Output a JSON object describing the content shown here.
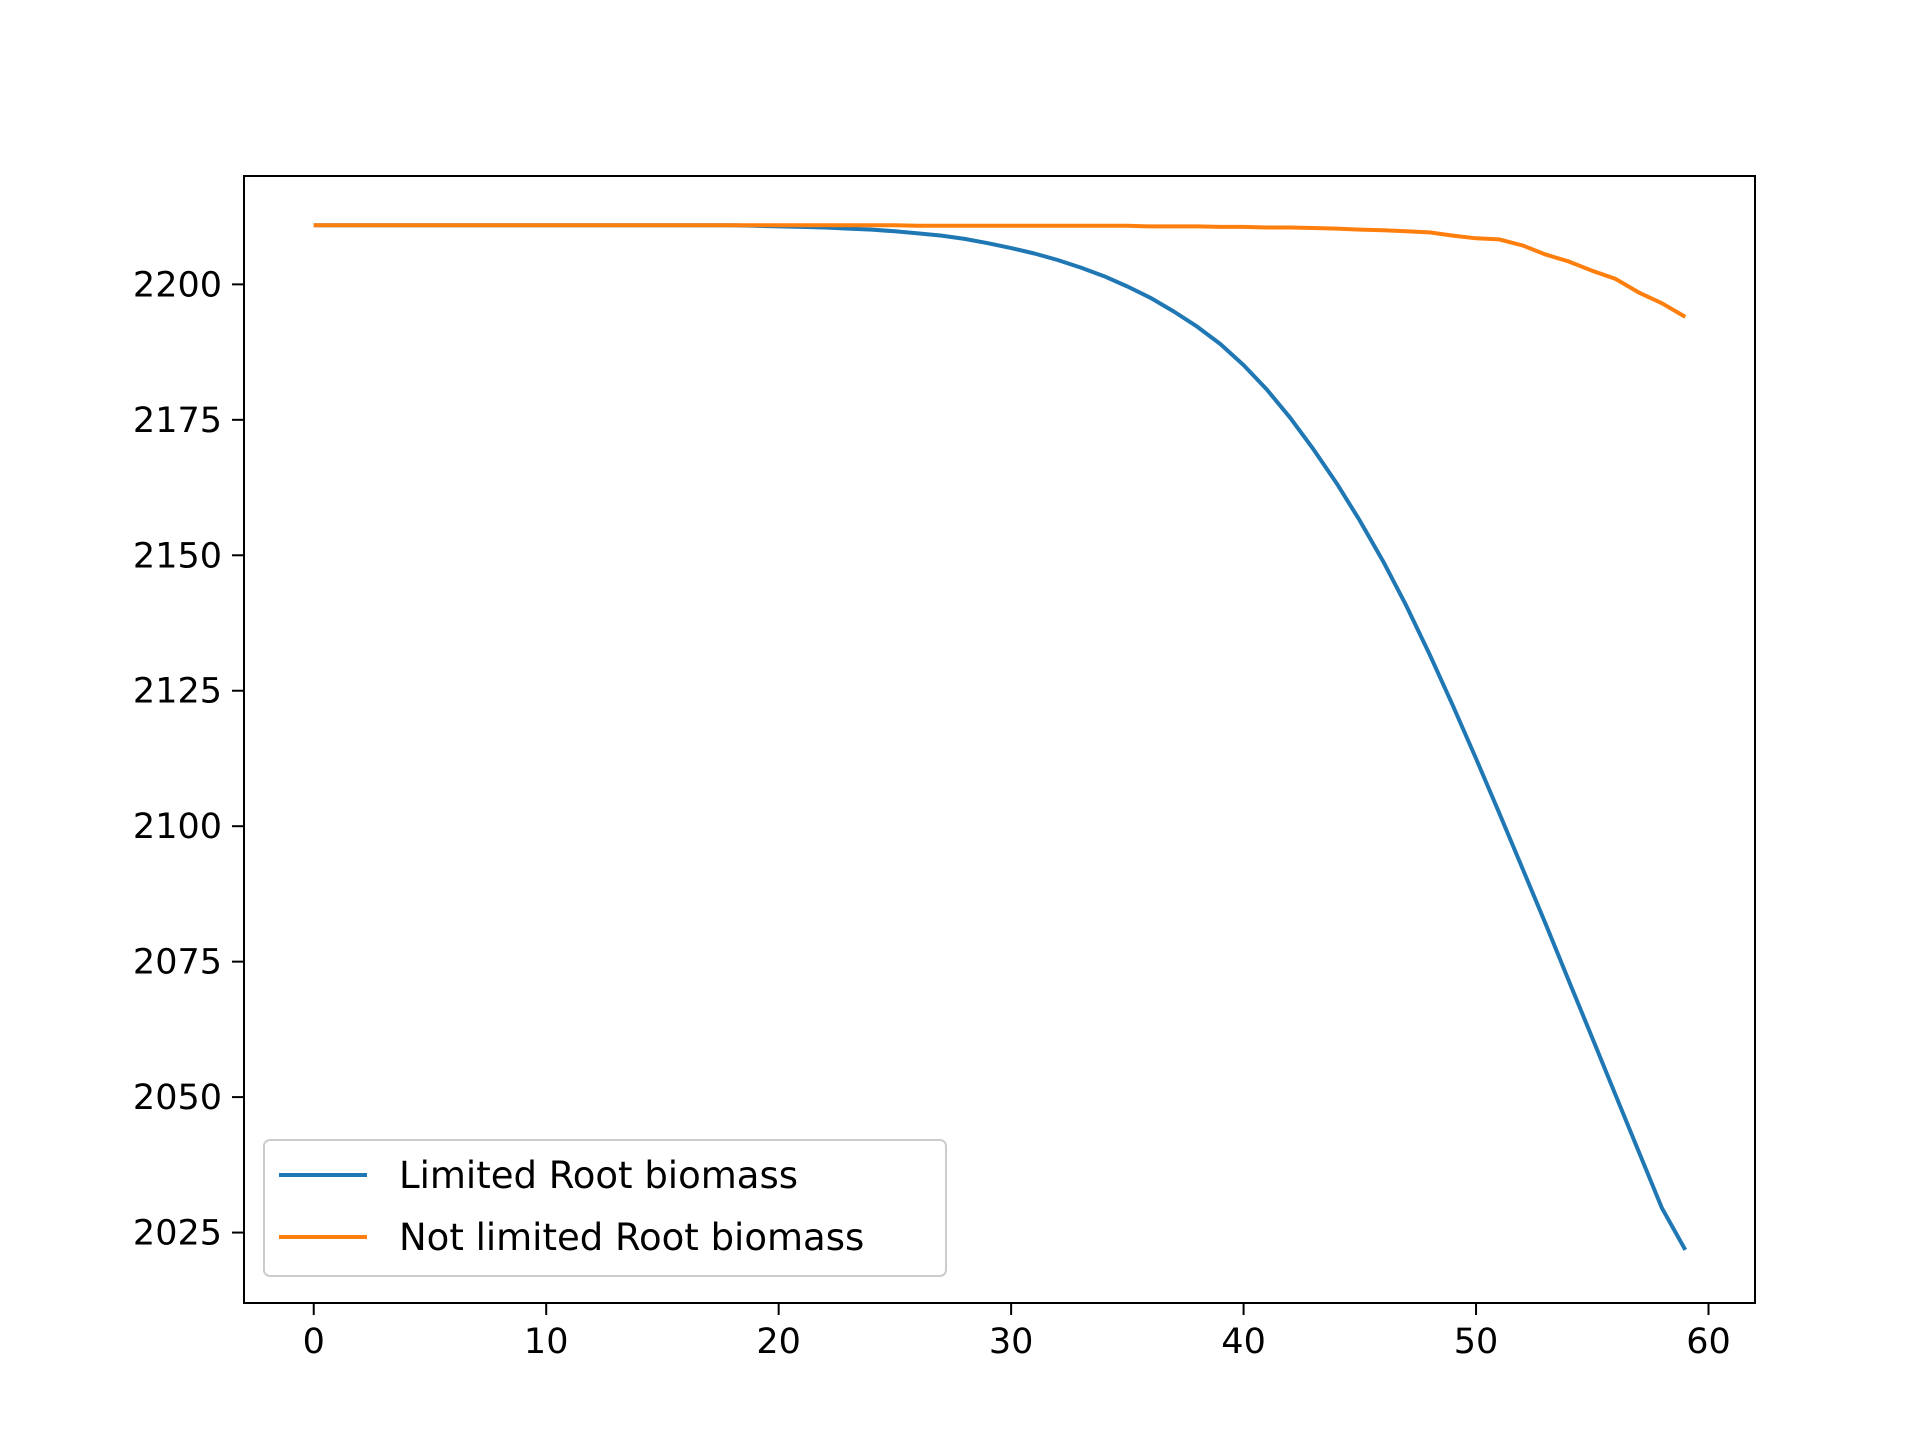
{
  "chart_data": {
    "type": "line",
    "title": "",
    "xlabel": "",
    "ylabel": "",
    "xlim": [
      -3,
      62
    ],
    "ylim": [
      2012,
      2220
    ],
    "xticks": [
      0,
      10,
      20,
      30,
      40,
      50,
      60
    ],
    "yticks": [
      2025,
      2050,
      2075,
      2100,
      2125,
      2150,
      2175,
      2200
    ],
    "legend_position": "lower-left",
    "series": [
      {
        "name": "Limited Root biomass",
        "color": "#1f77b4",
        "x": [
          0,
          1,
          2,
          3,
          4,
          5,
          6,
          7,
          8,
          9,
          10,
          11,
          12,
          13,
          14,
          15,
          16,
          17,
          18,
          19,
          20,
          21,
          22,
          23,
          24,
          25,
          26,
          27,
          28,
          29,
          30,
          31,
          32,
          33,
          34,
          35,
          36,
          37,
          38,
          39,
          40,
          41,
          42,
          43,
          44,
          45,
          46,
          47,
          48,
          49,
          50,
          51,
          52,
          53,
          54,
          55,
          56,
          57,
          58,
          59
        ],
        "values": [
          2210.9,
          2210.9,
          2210.9,
          2210.9,
          2210.9,
          2210.9,
          2210.9,
          2210.9,
          2210.9,
          2210.9,
          2210.9,
          2210.9,
          2210.9,
          2210.9,
          2210.9,
          2210.9,
          2210.9,
          2210.9,
          2210.9,
          2210.8,
          2210.7,
          2210.6,
          2210.5,
          2210.3,
          2210.1,
          2209.8,
          2209.4,
          2209.0,
          2208.4,
          2207.6,
          2206.7,
          2205.7,
          2204.5,
          2203.1,
          2201.5,
          2199.6,
          2197.5,
          2195.0,
          2192.2,
          2189.0,
          2185.1,
          2180.6,
          2175.4,
          2169.6,
          2163.3,
          2156.4,
          2148.9,
          2140.7,
          2131.7,
          2122.3,
          2112.5,
          2102.4,
          2092.2,
          2081.9,
          2071.4,
          2060.9,
          2050.4,
          2039.9,
          2029.5,
          2021.8
        ]
      },
      {
        "name": "Not limited Root biomass",
        "color": "#ff7f0e",
        "x": [
          0,
          1,
          2,
          3,
          4,
          5,
          6,
          7,
          8,
          9,
          10,
          11,
          12,
          13,
          14,
          15,
          16,
          17,
          18,
          19,
          20,
          21,
          22,
          23,
          24,
          25,
          26,
          27,
          28,
          29,
          30,
          31,
          32,
          33,
          34,
          35,
          36,
          37,
          38,
          39,
          40,
          41,
          42,
          43,
          44,
          45,
          46,
          47,
          48,
          49,
          50,
          51,
          52,
          53,
          54,
          55,
          56,
          57,
          58,
          59
        ],
        "values": [
          2210.9,
          2210.9,
          2210.9,
          2210.9,
          2210.9,
          2210.9,
          2210.9,
          2210.9,
          2210.9,
          2210.9,
          2210.9,
          2210.9,
          2210.9,
          2210.9,
          2210.9,
          2210.9,
          2210.9,
          2210.9,
          2210.9,
          2210.9,
          2210.9,
          2210.9,
          2210.9,
          2210.9,
          2210.9,
          2210.9,
          2210.8,
          2210.8,
          2210.8,
          2210.8,
          2210.8,
          2210.8,
          2210.8,
          2210.8,
          2210.8,
          2210.8,
          2210.7,
          2210.7,
          2210.7,
          2210.6,
          2210.6,
          2210.5,
          2210.5,
          2210.4,
          2210.3,
          2210.1,
          2210.0,
          2209.8,
          2209.6,
          2209.0,
          2208.5,
          2208.3,
          2207.2,
          2205.5,
          2204.2,
          2202.5,
          2201.0,
          2198.5,
          2196.5,
          2194.0
        ]
      }
    ]
  }
}
